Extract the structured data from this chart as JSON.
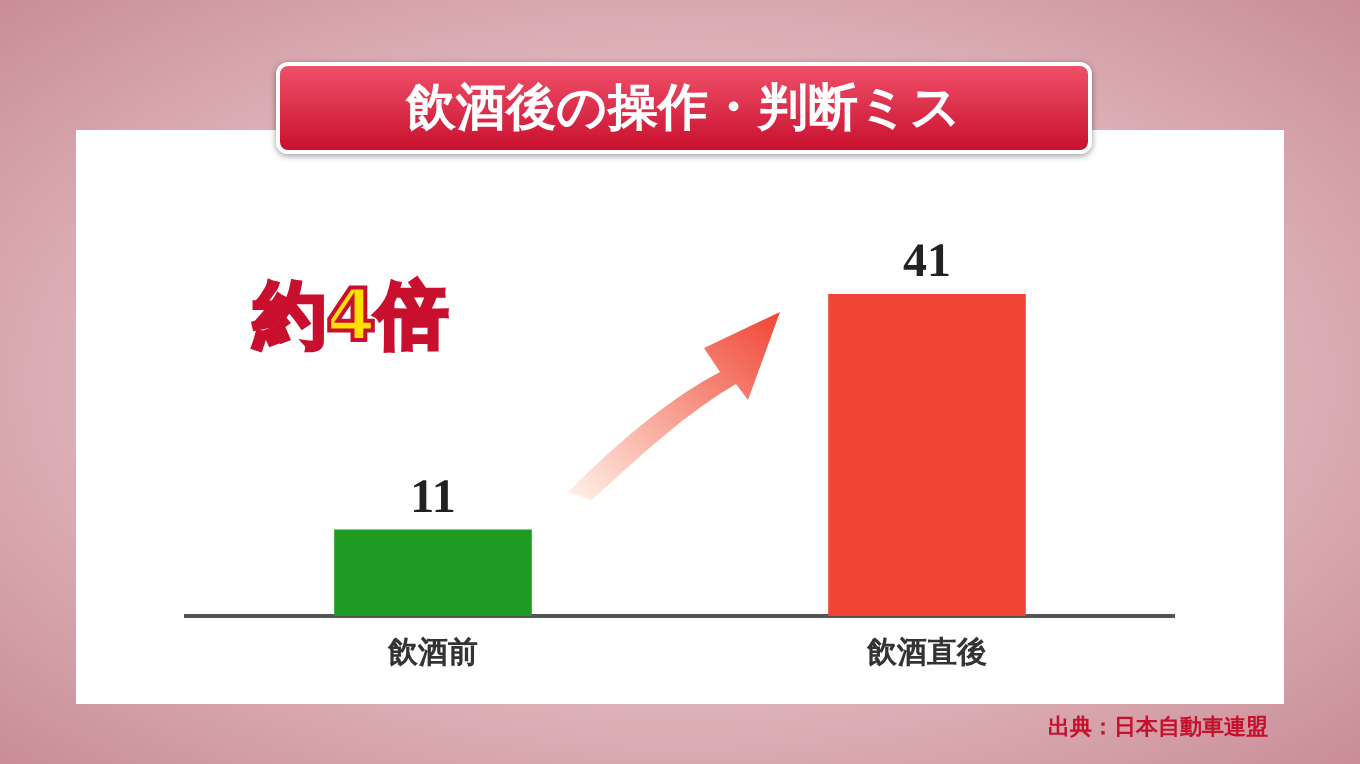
{
  "chart_data": {
    "type": "bar",
    "title": "飲酒後の操作・判断ミス",
    "categories": [
      "飲酒前",
      "飲酒直後"
    ],
    "values": [
      11,
      41
    ],
    "colors": [
      "#1f9a22",
      "#f04535"
    ],
    "data_labels": true,
    "grid": false,
    "legend": false,
    "annotations": [
      "約4倍",
      "出典：日本自動車連盟"
    ]
  }
}
